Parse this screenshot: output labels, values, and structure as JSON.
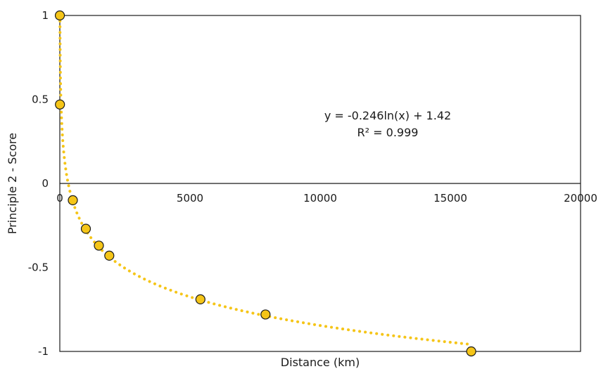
{
  "chart_data": {
    "type": "scatter",
    "title": "",
    "xlabel": "Distance (km)",
    "ylabel": "Principle 2 - Score",
    "xlim": [
      0,
      20000
    ],
    "ylim": [
      -1,
      1
    ],
    "xticks": [
      "0",
      "5000",
      "10000",
      "15000",
      "20000"
    ],
    "yticks": [
      "1",
      "0.5",
      "0",
      "-0.5",
      "-1"
    ],
    "grid": false,
    "legend": "none",
    "series": [
      {
        "marker_color": "#f5c518",
        "x": [
          1,
          5,
          500,
          1000,
          1500,
          1900,
          5400,
          7900,
          15800
        ],
        "y": [
          1.0,
          0.47,
          -0.1,
          -0.27,
          -0.37,
          -0.43,
          -0.69,
          -0.78,
          -1.0
        ]
      }
    ],
    "trendline": {
      "type": "logarithmic",
      "a": -0.246,
      "b": 1.42,
      "color": "#f5c518",
      "style": "dotted"
    },
    "annotations": [
      "y = -0.246ln(x) + 1.42",
      "R² = 0.999"
    ]
  }
}
